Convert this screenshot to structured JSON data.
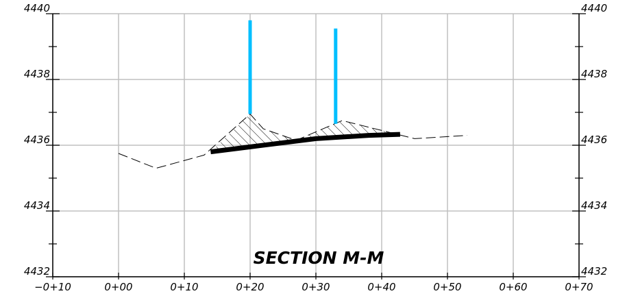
{
  "chart_data": {
    "type": "cross-section",
    "title": "SECTION M-M",
    "x_ticks": [
      "−0+10",
      "0+00",
      "0+10",
      "0+20",
      "0+30",
      "0+40",
      "0+50",
      "0+60",
      "0+70"
    ],
    "x_range": [
      -10,
      70
    ],
    "y_left_ticks": [
      "4440",
      "4438",
      "4436",
      "4434",
      "4432"
    ],
    "y_right_ticks": [
      "4440",
      "4438",
      "4436",
      "4434",
      "4432"
    ],
    "y_range": [
      4432,
      4440
    ],
    "grid": true,
    "existing_ground": [
      [
        0,
        4435.75
      ],
      [
        5.7,
        4435.3
      ],
      [
        13,
        4435.7
      ],
      [
        20,
        4436.95
      ],
      [
        22,
        4436.5
      ],
      [
        27,
        4436.15
      ],
      [
        34,
        4436.75
      ],
      [
        40,
        4436.45
      ],
      [
        45,
        4436.2
      ],
      [
        53,
        4436.3
      ]
    ],
    "proposed_grade": [
      [
        14,
        4435.8
      ],
      [
        20,
        4435.95
      ],
      [
        30,
        4436.2
      ],
      [
        38,
        4436.3
      ],
      [
        42.8,
        4436.33
      ]
    ],
    "wall_posts": [
      {
        "x": 20,
        "bottom": 4436.95,
        "top": 4439.8
      },
      {
        "x": 33,
        "bottom": 4436.65,
        "top": 4439.55
      }
    ],
    "colors": {
      "grid": "#c0c0c0",
      "wall_posts": "#00bfff",
      "grade": "#000000",
      "ground": "#000000"
    }
  }
}
